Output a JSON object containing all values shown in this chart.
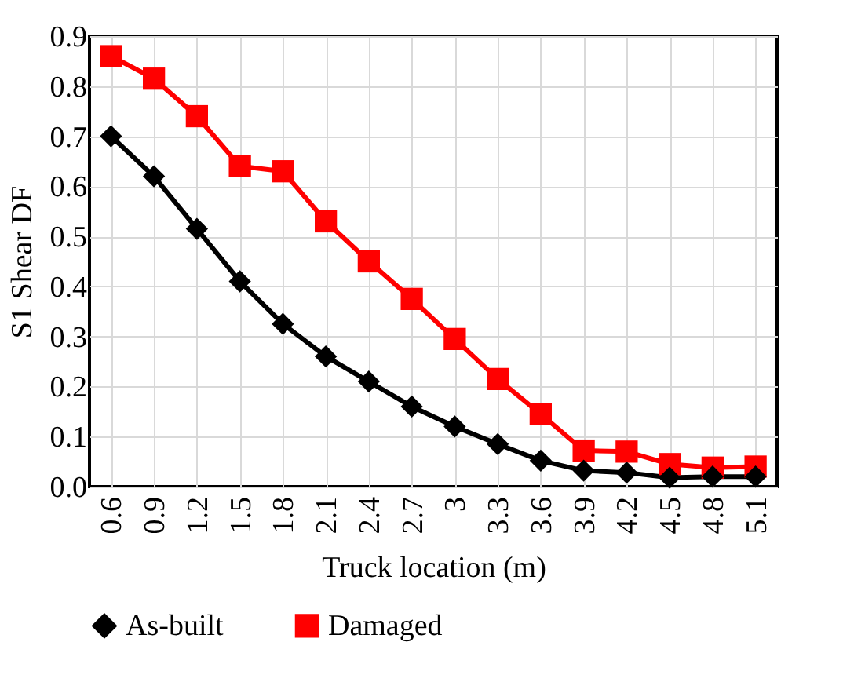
{
  "chart_data": {
    "type": "line",
    "xlabel": "Truck location (m)",
    "ylabel": "S1 Shear DF",
    "categories": [
      "0.6",
      "0.9",
      "1.2",
      "1.5",
      "1.8",
      "2.1",
      "2.4",
      "2.7",
      "3",
      "3.3",
      "3.6",
      "3.9",
      "4.2",
      "4.5",
      "4.8",
      "5.1"
    ],
    "series": [
      {
        "name": "As-built",
        "color": "#000000",
        "marker": "diamond",
        "values": [
          0.7,
          0.62,
          0.515,
          0.41,
          0.325,
          0.26,
          0.21,
          0.16,
          0.12,
          0.085,
          0.052,
          0.032,
          0.028,
          0.018,
          0.02,
          0.02
        ]
      },
      {
        "name": "Damaged",
        "color": "#ff0000",
        "marker": "square",
        "values": [
          0.86,
          0.815,
          0.74,
          0.64,
          0.63,
          0.53,
          0.45,
          0.375,
          0.295,
          0.215,
          0.145,
          0.072,
          0.07,
          0.045,
          0.038,
          0.04
        ]
      }
    ],
    "ylim": [
      0,
      0.9
    ],
    "yticks": [
      {
        "value": 0,
        "label": "0.0"
      },
      {
        "value": 0.1,
        "label": "0.1"
      },
      {
        "value": 0.2,
        "label": "0.2"
      },
      {
        "value": 0.3,
        "label": "0.3"
      },
      {
        "value": 0.4,
        "label": "0.4"
      },
      {
        "value": 0.5,
        "label": "0.5"
      },
      {
        "value": 0.6,
        "label": "0.6"
      },
      {
        "value": 0.7,
        "label": "0.7"
      },
      {
        "value": 0.8,
        "label": "0.8"
      },
      {
        "value": 0.9,
        "label": "0.9"
      }
    ],
    "grid": true,
    "legend": "bottom"
  }
}
